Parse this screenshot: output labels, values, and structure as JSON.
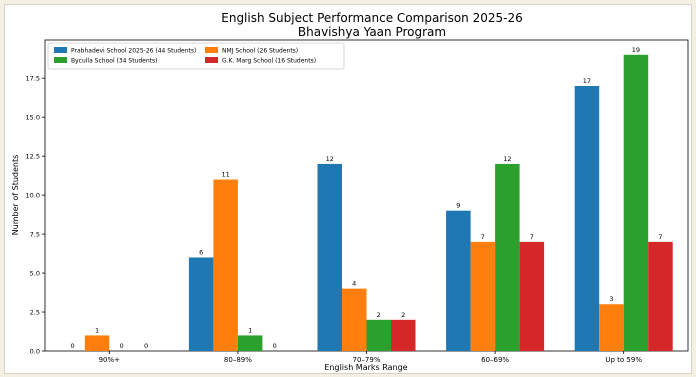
{
  "chart_data": {
    "type": "bar",
    "title": "English Subject Performance Comparison 2025-26",
    "subtitle": "Bhavishya Yaan Program",
    "xlabel": "English Marks Range",
    "ylabel": "Number of Students",
    "categories": [
      "90%+",
      "80–89%",
      "70–79%",
      "60–69%",
      "Up to 59%"
    ],
    "ylim": [
      0,
      19.95
    ],
    "yticks": [
      "0.0",
      "2.5",
      "5.0",
      "7.5",
      "10.0",
      "12.5",
      "15.0",
      "17.5"
    ],
    "ytick_values": [
      0,
      2.5,
      5,
      7.5,
      10,
      12.5,
      15,
      17.5
    ],
    "grid": false,
    "legend_position": "top-left",
    "series": [
      {
        "name": "Prabhadevi School 2025-26 (44 Students)",
        "color": "#1f77b4",
        "values": [
          0,
          6,
          12,
          9,
          17
        ]
      },
      {
        "name": "NMJ School (26 Students)",
        "color": "#ff7f0e",
        "values": [
          1,
          11,
          4,
          7,
          3
        ]
      },
      {
        "name": "Byculla School (34 Students)",
        "color": "#2ca02c",
        "values": [
          0,
          1,
          2,
          12,
          19
        ]
      },
      {
        "name": "G.K. Marg School (16 Students)",
        "color": "#d62728",
        "values": [
          0,
          0,
          2,
          7,
          7
        ]
      }
    ]
  }
}
